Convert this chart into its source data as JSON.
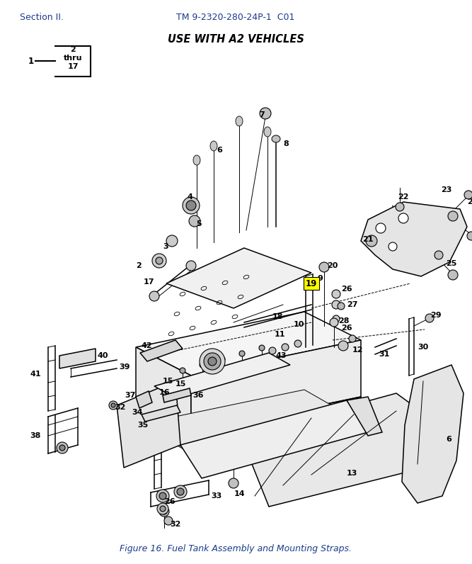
{
  "title_left": "Section II.",
  "title_center": "TM 9-2320-280-24P-1  C01",
  "subtitle": "USE WITH A2 VEHICLES",
  "caption": "Figure 16. Fuel Tank Assembly and Mounting Straps.",
  "background_color": "#ffffff",
  "text_color_blue": "#1a3a8a",
  "text_color_black": "#000000",
  "highlight_color": "#ffff00",
  "fig_width": 6.67,
  "fig_height": 7.96,
  "dpi": 100
}
